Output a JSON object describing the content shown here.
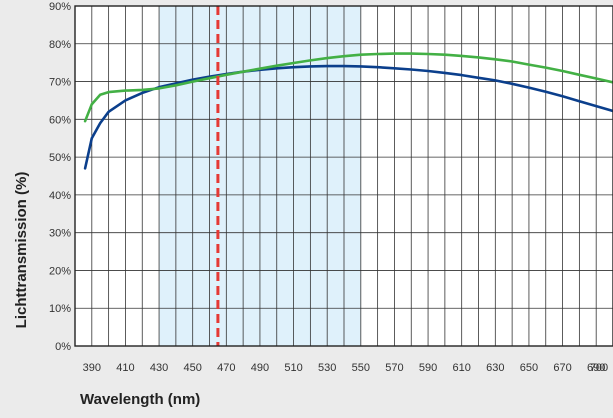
{
  "chart_data": {
    "type": "line",
    "title": "",
    "xlabel": "Wavelength (nm)",
    "ylabel": "Lichttransmission (%)",
    "xlim": [
      380,
      700
    ],
    "ylim": [
      0,
      90
    ],
    "x_ticks": [
      390,
      410,
      430,
      450,
      470,
      490,
      510,
      530,
      550,
      570,
      590,
      610,
      630,
      650,
      670,
      690,
      700
    ],
    "y_ticks": [
      {
        "value": 0,
        "label": "0%"
      },
      {
        "value": 10,
        "label": "10%"
      },
      {
        "value": 20,
        "label": "20%"
      },
      {
        "value": 30,
        "label": "30%"
      },
      {
        "value": 40,
        "label": "40%"
      },
      {
        "value": 50,
        "label": "50%"
      },
      {
        "value": 60,
        "label": "60%"
      },
      {
        "value": 70,
        "label": "70%"
      },
      {
        "value": 80,
        "label": "80%"
      },
      {
        "value": 90,
        "label": "90%"
      }
    ],
    "grid": true,
    "legend": "none",
    "highlight_band": {
      "x_range": [
        430,
        550
      ],
      "color": "#dff1fb"
    },
    "reference_line": {
      "x": 465,
      "color": "#e53935"
    },
    "series": [
      {
        "color": "#0b3f8c",
        "x": [
          386,
          390,
          395,
          400,
          410,
          420,
          430,
          440,
          450,
          460,
          470,
          480,
          490,
          500,
          510,
          520,
          530,
          540,
          550,
          560,
          570,
          580,
          590,
          600,
          610,
          620,
          630,
          640,
          650,
          660,
          670,
          680,
          690,
          700
        ],
        "y": [
          47,
          55,
          59,
          62,
          65,
          67,
          68.5,
          69.5,
          70.5,
          71.3,
          72,
          72.6,
          73.1,
          73.5,
          73.8,
          74,
          74.1,
          74.1,
          74,
          73.8,
          73.5,
          73.2,
          72.8,
          72.3,
          71.7,
          71,
          70.3,
          69.4,
          68.4,
          67.3,
          66.1,
          64.8,
          63.5,
          62.2
        ]
      },
      {
        "color": "#43b045",
        "x": [
          386,
          390,
          395,
          400,
          410,
          420,
          430,
          440,
          450,
          460,
          470,
          480,
          490,
          500,
          510,
          520,
          530,
          540,
          550,
          560,
          570,
          580,
          590,
          600,
          610,
          620,
          630,
          640,
          650,
          660,
          670,
          680,
          690,
          700
        ],
        "y": [
          59.5,
          64,
          66.5,
          67.2,
          67.6,
          67.8,
          68.2,
          69,
          70,
          70.9,
          71.8,
          72.6,
          73.4,
          74.2,
          74.9,
          75.6,
          76.2,
          76.7,
          77.1,
          77.3,
          77.4,
          77.4,
          77.3,
          77.1,
          76.8,
          76.4,
          75.9,
          75.3,
          74.5,
          73.7,
          72.8,
          71.8,
          70.8,
          69.8
        ]
      }
    ]
  }
}
